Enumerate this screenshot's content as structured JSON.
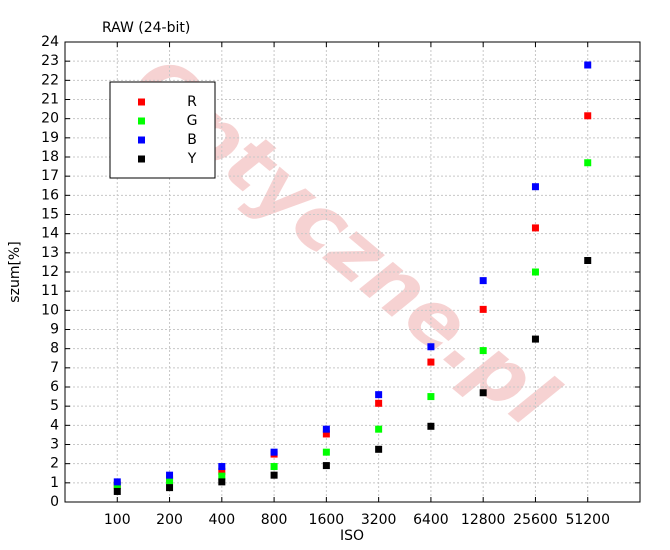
{
  "chart_data": {
    "type": "scatter",
    "title": "RAW (24-bit)",
    "watermark": "Optyczne.pl",
    "xlabel": "ISO",
    "ylabel": "szum[%]",
    "categories": [
      100,
      200,
      400,
      800,
      1600,
      3200,
      6400,
      12800,
      25600,
      51200
    ],
    "series": [
      {
        "name": "R",
        "color": "#ff0000",
        "values": [
          0.9,
          1.2,
          1.6,
          2.5,
          3.55,
          5.15,
          7.3,
          10.05,
          14.3,
          20.15
        ]
      },
      {
        "name": "G",
        "color": "#00ff00",
        "values": [
          0.85,
          1.1,
          1.35,
          1.85,
          2.6,
          3.8,
          5.5,
          7.9,
          12.0,
          17.7
        ]
      },
      {
        "name": "B",
        "color": "#0000ff",
        "values": [
          1.05,
          1.4,
          1.85,
          2.6,
          3.8,
          5.6,
          8.1,
          11.55,
          16.45,
          22.8
        ]
      },
      {
        "name": "Y",
        "color": "#000000",
        "values": [
          0.55,
          0.75,
          1.05,
          1.4,
          1.9,
          2.75,
          3.95,
          5.7,
          8.5,
          12.6
        ]
      }
    ],
    "ylim": [
      0,
      24
    ],
    "yticks": [
      0,
      1,
      2,
      3,
      4,
      5,
      6,
      7,
      8,
      9,
      10,
      11,
      12,
      13,
      14,
      15,
      16,
      17,
      18,
      19,
      20,
      21,
      22,
      23,
      24
    ],
    "grid": true,
    "legend": "upper-left"
  }
}
